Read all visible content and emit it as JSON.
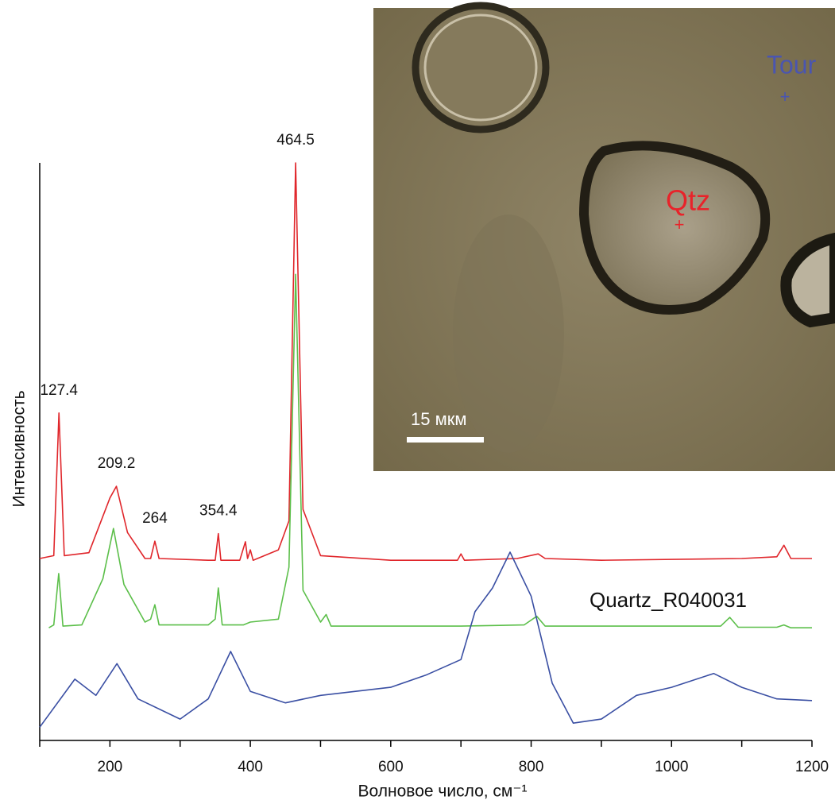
{
  "chart_data": {
    "type": "line",
    "xlabel": "Волновое число, см⁻¹",
    "ylabel": "Интенсивность",
    "xlim": [
      100,
      1200
    ],
    "xticks": [
      200,
      400,
      600,
      800,
      1000,
      1200
    ],
    "xminorticks": [
      100,
      300,
      500,
      700,
      900,
      1100
    ],
    "ylim": [
      0,
      100
    ],
    "annotations": [
      127.4,
      209.2,
      264,
      354.4,
      464.5
    ],
    "series": [
      {
        "color": "#e0262b",
        "x": [
          100,
          120,
          127.4,
          135,
          170,
          200,
          209.2,
          225,
          250,
          258,
          264,
          270,
          340,
          350,
          354.4,
          358,
          385,
          393,
          396,
          400,
          404,
          440,
          455,
          464.5,
          475,
          500,
          600,
          695,
          700,
          705,
          780,
          810,
          820,
          900,
          1100,
          1150,
          1160,
          1170,
          1200
        ],
        "values": [
          31.5,
          32,
          56.7,
          32,
          32.5,
          42,
          44,
          36,
          31.5,
          31.5,
          34.5,
          31.5,
          31.2,
          31.2,
          35.8,
          31.2,
          31.2,
          34.4,
          31.5,
          33,
          31.2,
          33,
          38,
          100,
          40,
          32,
          31.2,
          31.2,
          32.3,
          31.2,
          31.5,
          32.3,
          31.5,
          31.2,
          31.5,
          31.8,
          33.8,
          31.5,
          31.5
        ]
      },
      {
        "name": "Quartz_R040031",
        "color": "#5cbf4a",
        "x": [
          113,
          120,
          127,
          133,
          160,
          190,
          205,
          220,
          250,
          258,
          264,
          270,
          340,
          350,
          354.4,
          360,
          390,
          400,
          440,
          455,
          464.5,
          475,
          500,
          508,
          515,
          700,
          790,
          808,
          820,
          1070,
          1083,
          1095,
          1150,
          1160,
          1170,
          1200
        ],
        "values": [
          19.5,
          20,
          28.9,
          19.8,
          20,
          28,
          36.7,
          27,
          20.5,
          21,
          23.5,
          20,
          20,
          21,
          26.4,
          20,
          20,
          20.5,
          21,
          30,
          80.7,
          26,
          20.5,
          21.8,
          19.8,
          19.8,
          20,
          21.5,
          19.8,
          19.8,
          21.3,
          19.6,
          19.6,
          20,
          19.5,
          19.5
        ]
      },
      {
        "color": "#3a4fa3",
        "x": [
          100,
          150,
          180,
          210,
          240,
          300,
          340,
          372,
          400,
          450,
          500,
          550,
          600,
          650,
          700,
          720,
          745,
          770,
          800,
          830,
          860,
          900,
          950,
          1000,
          1060,
          1100,
          1150,
          1200
        ],
        "values": [
          2.3,
          10.6,
          7.8,
          13.3,
          7.2,
          3.7,
          7.2,
          15.4,
          8.5,
          6.5,
          7.8,
          8.5,
          9.2,
          11.3,
          14,
          22.3,
          26.4,
          32.6,
          25,
          9.9,
          3,
          3.7,
          7.8,
          9.2,
          11.6,
          9.2,
          7.2,
          6.9
        ]
      }
    ]
  },
  "inset": {
    "labels": [
      {
        "text": "Tour",
        "color": "#4a55b0"
      },
      {
        "text": "Qtz",
        "color": "#e8232a"
      }
    ],
    "scale_bar": "15 мкм"
  }
}
